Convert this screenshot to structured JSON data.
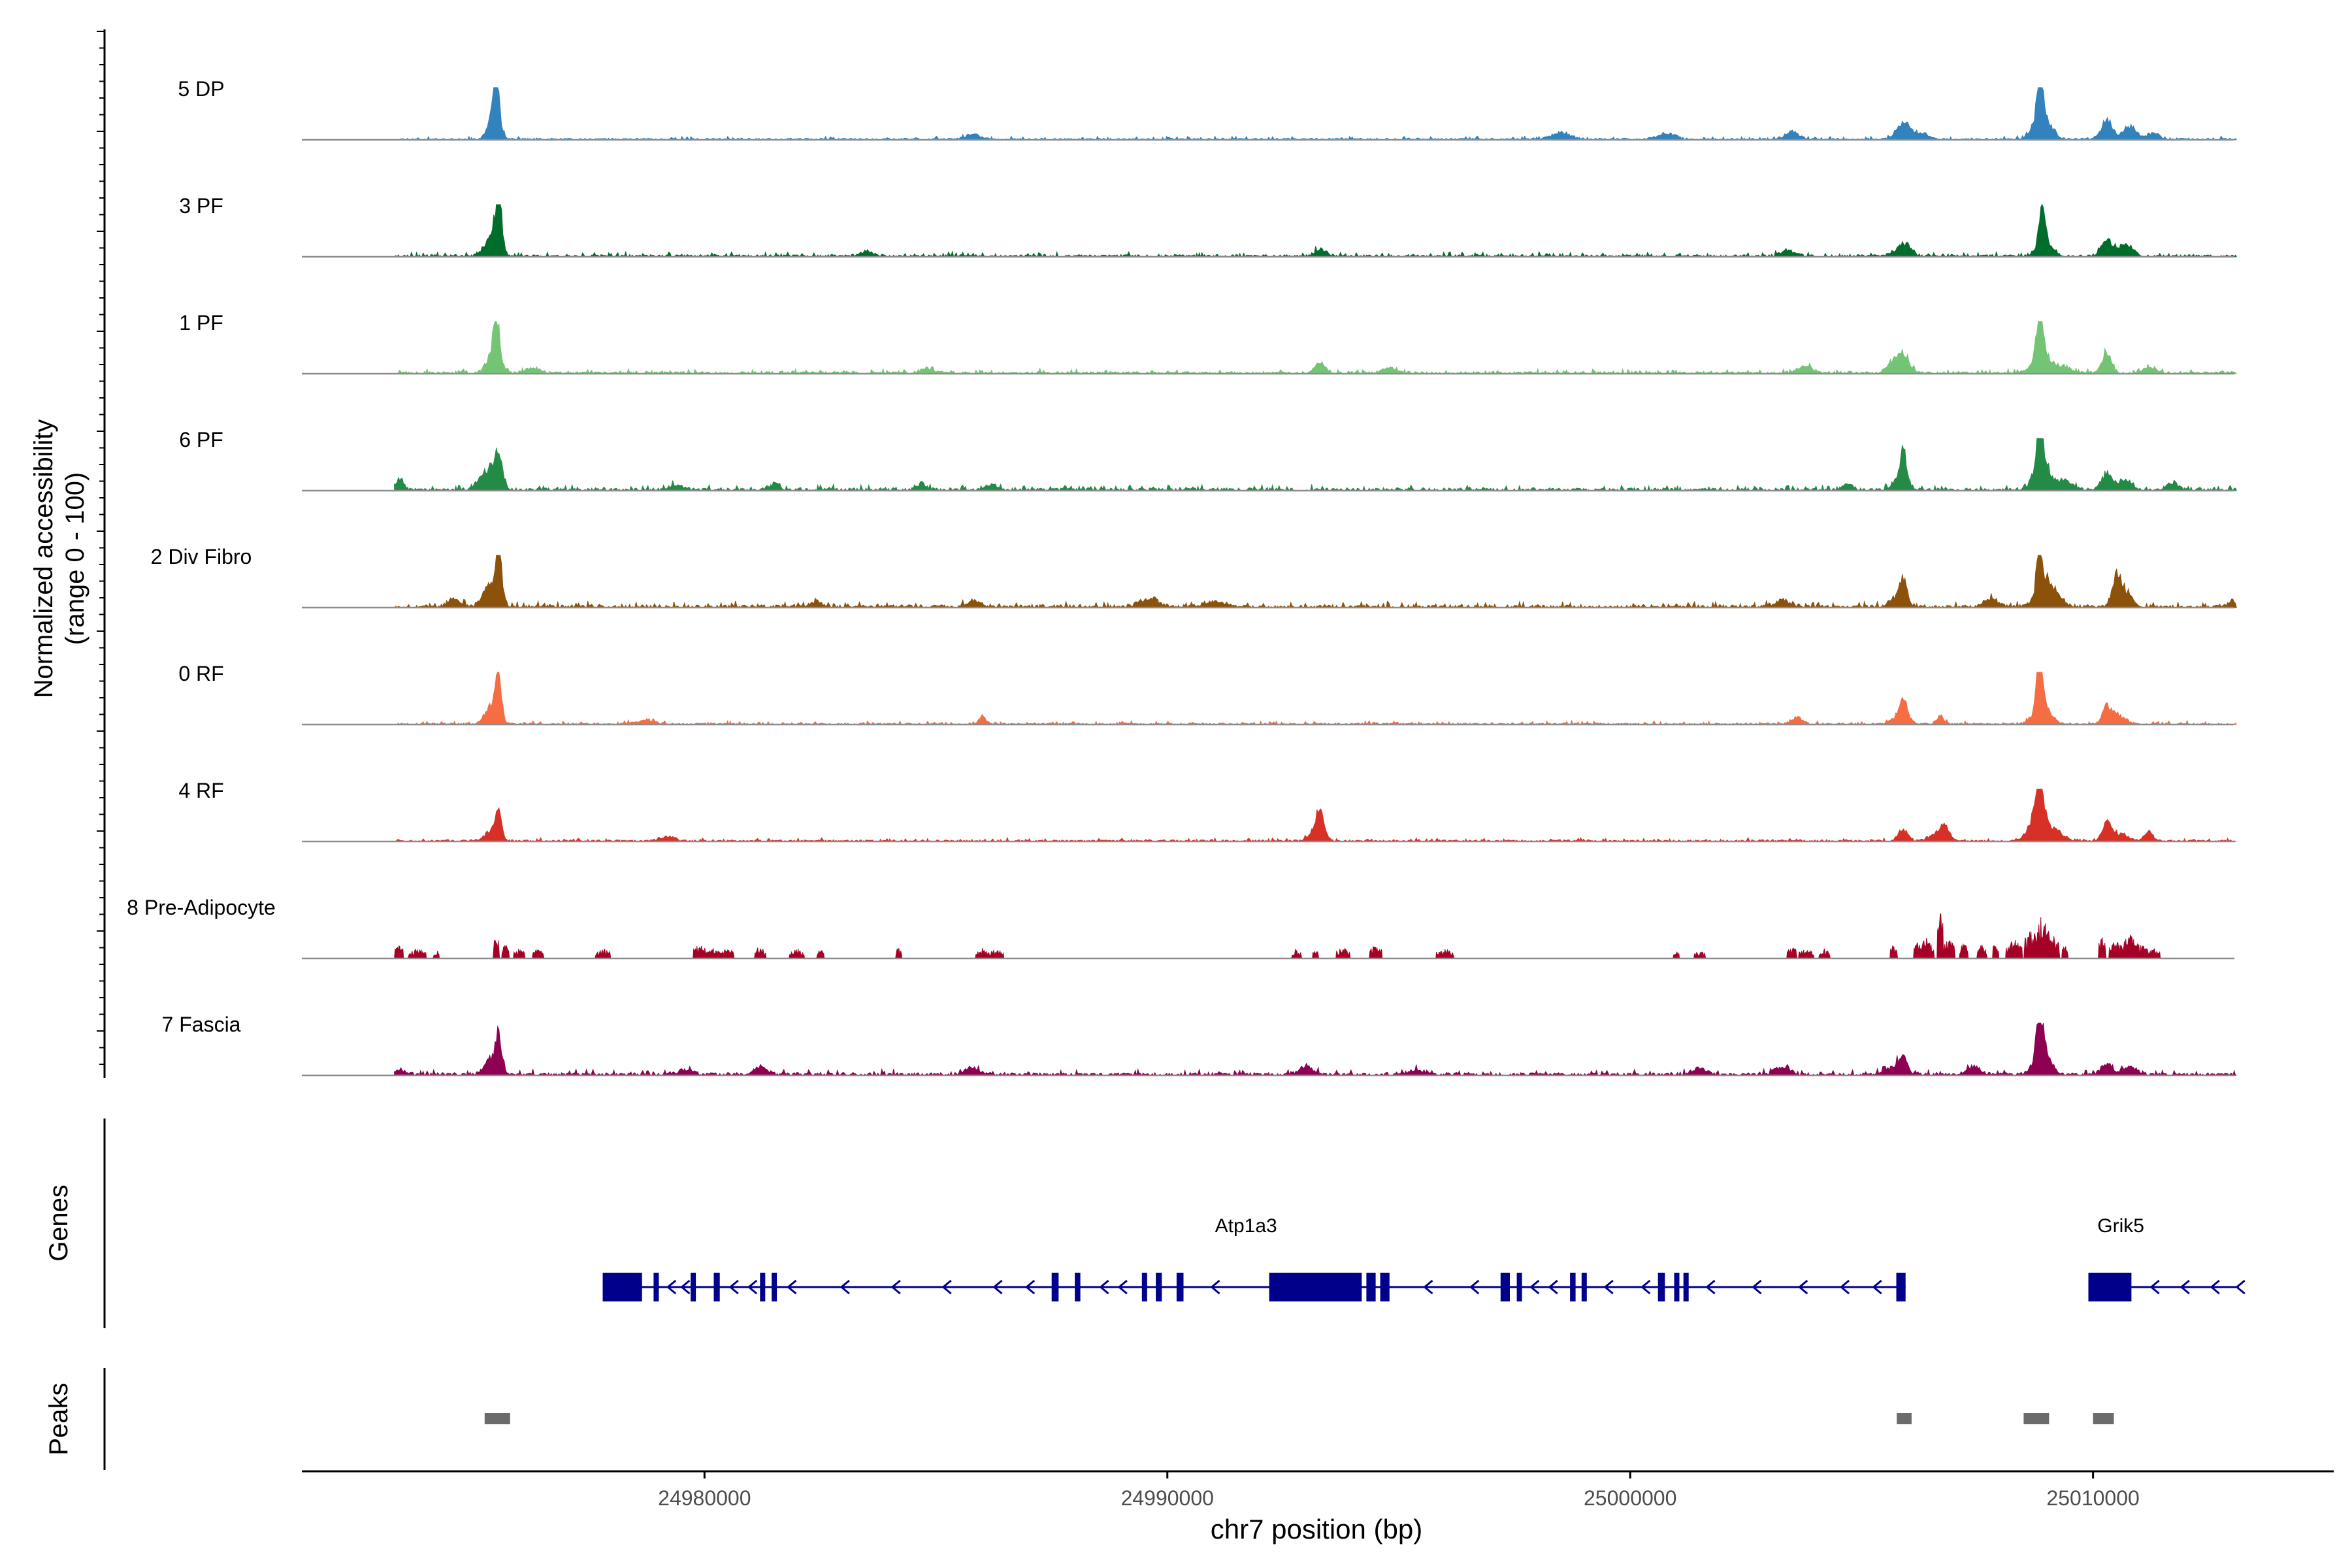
{
  "chart_data": {
    "type": "area",
    "title": "",
    "xlabel": "chr7 position (bp)",
    "ylabel_line1": "Normalized accessibility",
    "ylabel_line2": "(range 0 - 100)",
    "xlim": [
      24971300,
      25015200
    ],
    "ylim": [
      0,
      100
    ],
    "x_ticks": [
      24980000,
      24990000,
      25000000,
      25010000
    ],
    "x_tick_labels": [
      "24980000",
      "24990000",
      "25000000",
      "25010000"
    ],
    "signal_start": 24973300,
    "signal_end": 25013100,
    "series": [
      {
        "name": "5 DP",
        "color": "#3182bd",
        "noise": 3,
        "mode": "smooth",
        "seed": 11,
        "peaks": [
          [
            24975500,
            95,
            60
          ],
          [
            24975450,
            45,
            120
          ],
          [
            24985800,
            10,
            150
          ],
          [
            24998500,
            12,
            200
          ],
          [
            25000800,
            10,
            180
          ],
          [
            25003500,
            14,
            150
          ],
          [
            25005900,
            30,
            150
          ],
          [
            25006300,
            12,
            150
          ],
          [
            25008850,
            100,
            60
          ],
          [
            25008900,
            45,
            180
          ],
          [
            25010300,
            35,
            120
          ],
          [
            25010800,
            25,
            140
          ],
          [
            25011300,
            12,
            120
          ]
        ]
      },
      {
        "name": "3 PF",
        "color": "#006d2c",
        "noise": 4,
        "mode": "smooth",
        "seed": 23,
        "peaks": [
          [
            24975550,
            90,
            70
          ],
          [
            24975400,
            40,
            140
          ],
          [
            24983500,
            8,
            150
          ],
          [
            24993300,
            12,
            120
          ],
          [
            25003400,
            10,
            150
          ],
          [
            25005800,
            14,
            130
          ],
          [
            25006000,
            18,
            100
          ],
          [
            25008900,
            80,
            60
          ],
          [
            25008950,
            30,
            160
          ],
          [
            25010300,
            30,
            120
          ],
          [
            25010700,
            22,
            150
          ]
        ]
      },
      {
        "name": "1 PF",
        "color": "#74c476",
        "noise": 4,
        "mode": "smooth",
        "seed": 37,
        "peaks": [
          [
            24975500,
            82,
            60
          ],
          [
            24975450,
            35,
            150
          ],
          [
            24976300,
            10,
            150
          ],
          [
            24984800,
            8,
            150
          ],
          [
            24993300,
            20,
            90
          ],
          [
            24994800,
            10,
            150
          ],
          [
            25003800,
            14,
            150
          ],
          [
            25005700,
            18,
            150
          ],
          [
            25005900,
            28,
            140
          ],
          [
            25008850,
            100,
            60
          ],
          [
            25008900,
            40,
            180
          ],
          [
            25009400,
            12,
            150
          ],
          [
            25010300,
            40,
            100
          ],
          [
            25011200,
            10,
            150
          ]
        ]
      },
      {
        "name": "6 PF",
        "color": "#238b45",
        "noise": 5,
        "mode": "smooth",
        "seed": 41,
        "peaks": [
          [
            24973400,
            18,
            100
          ],
          [
            24975550,
            52,
            80
          ],
          [
            24975400,
            32,
            160
          ],
          [
            24975200,
            15,
            150
          ],
          [
            24979400,
            10,
            120
          ],
          [
            24981500,
            10,
            120
          ],
          [
            24984700,
            12,
            100
          ],
          [
            24986200,
            10,
            100
          ],
          [
            25004700,
            12,
            100
          ],
          [
            25005900,
            58,
            60
          ],
          [
            25005850,
            25,
            150
          ],
          [
            25008850,
            100,
            60
          ],
          [
            25008900,
            45,
            180
          ],
          [
            25009400,
            18,
            150
          ],
          [
            25010300,
            32,
            110
          ],
          [
            25010700,
            18,
            150
          ],
          [
            25011700,
            14,
            120
          ]
        ]
      },
      {
        "name": "2 Div Fibro",
        "color": "#8c510a",
        "noise": 5,
        "mode": "smooth",
        "seed": 53,
        "peaks": [
          [
            24975550,
            96,
            60
          ],
          [
            24975400,
            45,
            150
          ],
          [
            24974600,
            12,
            150
          ],
          [
            24982400,
            8,
            150
          ],
          [
            24985800,
            10,
            150
          ],
          [
            24989600,
            14,
            200
          ],
          [
            24991000,
            10,
            200
          ],
          [
            25003300,
            12,
            150
          ],
          [
            25005900,
            42,
            70
          ],
          [
            25005800,
            20,
            160
          ],
          [
            25007800,
            14,
            150
          ],
          [
            25008850,
            100,
            60
          ],
          [
            25008950,
            40,
            180
          ],
          [
            25009200,
            15,
            150
          ],
          [
            25010500,
            52,
            90
          ],
          [
            25010700,
            28,
            140
          ],
          [
            25013000,
            12,
            80
          ]
        ]
      },
      {
        "name": "0 RF",
        "color": "#f46d43",
        "noise": 3,
        "mode": "smooth",
        "seed": 67,
        "peaks": [
          [
            24975550,
            80,
            60
          ],
          [
            24975400,
            35,
            140
          ],
          [
            24978700,
            6,
            200
          ],
          [
            24986000,
            12,
            80
          ],
          [
            25003600,
            12,
            120
          ],
          [
            25005900,
            30,
            80
          ],
          [
            25005850,
            18,
            150
          ],
          [
            25006700,
            14,
            80
          ],
          [
            25008850,
            100,
            60
          ],
          [
            25008900,
            40,
            170
          ],
          [
            25010300,
            32,
            100
          ],
          [
            25010550,
            15,
            150
          ]
        ]
      },
      {
        "name": "4 RF",
        "color": "#d73027",
        "noise": 3,
        "mode": "smooth",
        "seed": 71,
        "peaks": [
          [
            24975550,
            55,
            60
          ],
          [
            24975400,
            20,
            140
          ],
          [
            24979200,
            8,
            150
          ],
          [
            24993300,
            45,
            80
          ],
          [
            24993200,
            20,
            140
          ],
          [
            25005900,
            22,
            100
          ],
          [
            25006800,
            30,
            90
          ],
          [
            25006600,
            14,
            150
          ],
          [
            25008850,
            85,
            70
          ],
          [
            25008800,
            55,
            170
          ],
          [
            25009200,
            20,
            150
          ],
          [
            25010300,
            38,
            90
          ],
          [
            25010600,
            14,
            150
          ],
          [
            25011200,
            18,
            90
          ]
        ]
      },
      {
        "name": "8 Pre-Adipocyte",
        "color": "#a50026",
        "noise": 0,
        "mode": "spiky",
        "seed": 83,
        "end": 25011700,
        "spikes": [
          [
            24973400,
            30
          ],
          [
            24973800,
            20
          ],
          [
            24974200,
            18
          ],
          [
            24975500,
            50
          ],
          [
            24975700,
            30
          ],
          [
            24976000,
            20
          ],
          [
            24976400,
            20
          ],
          [
            24977800,
            20
          ],
          [
            24979900,
            30
          ],
          [
            24980200,
            20
          ],
          [
            24980500,
            25
          ],
          [
            24981200,
            25
          ],
          [
            24982000,
            20
          ],
          [
            24982500,
            20
          ],
          [
            24984200,
            25
          ],
          [
            24986000,
            20
          ],
          [
            24986300,
            18
          ],
          [
            24992800,
            20
          ],
          [
            24993200,
            18
          ],
          [
            24993800,
            22
          ],
          [
            24994500,
            28
          ],
          [
            24996000,
            20
          ],
          [
            25001000,
            15
          ],
          [
            25001500,
            15
          ],
          [
            25003500,
            25
          ],
          [
            25003800,
            20
          ],
          [
            25004200,
            18
          ],
          [
            25005700,
            30
          ],
          [
            25006200,
            35
          ],
          [
            25006400,
            45
          ],
          [
            25006700,
            100
          ],
          [
            25006900,
            40
          ],
          [
            25007200,
            30
          ],
          [
            25007600,
            28
          ],
          [
            25007900,
            35
          ],
          [
            25008300,
            40
          ],
          [
            25008700,
            60
          ],
          [
            25008900,
            85
          ],
          [
            25009100,
            50
          ],
          [
            25009400,
            30
          ],
          [
            25010200,
            45
          ],
          [
            25010500,
            35
          ],
          [
            25010800,
            50
          ],
          [
            25011000,
            30
          ],
          [
            25011300,
            20
          ]
        ]
      },
      {
        "name": "7 Fascia",
        "color": "#8e0152",
        "noise": 5,
        "mode": "smooth",
        "seed": 97,
        "peaks": [
          [
            24973400,
            10,
            150
          ],
          [
            24975550,
            62,
            70
          ],
          [
            24975400,
            28,
            150
          ],
          [
            24979600,
            10,
            150
          ],
          [
            24981200,
            14,
            150
          ],
          [
            24985800,
            12,
            150
          ],
          [
            24993000,
            14,
            150
          ],
          [
            24995400,
            10,
            150
          ],
          [
            25001500,
            12,
            150
          ],
          [
            25003300,
            16,
            150
          ],
          [
            25005900,
            28,
            90
          ],
          [
            25005700,
            14,
            180
          ],
          [
            25007400,
            14,
            150
          ],
          [
            25008850,
            85,
            70
          ],
          [
            25008900,
            45,
            170
          ],
          [
            25010300,
            22,
            110
          ],
          [
            25010800,
            15,
            150
          ]
        ]
      }
    ],
    "genes_track": {
      "label": "Genes",
      "color": "#00008b",
      "genes": [
        {
          "name": "Atp1a3",
          "start": 24977800,
          "end": 25005950,
          "strand": "-",
          "label_at": 24991700,
          "exons": [
            [
              24977800,
              24978650
            ],
            [
              24978900,
              24979000
            ],
            [
              24979700,
              24979800
            ],
            [
              24980200,
              24980330
            ],
            [
              24981200,
              24981290
            ],
            [
              24981450,
              24981560
            ],
            [
              24987500,
              24987650
            ],
            [
              24988000,
              24988120
            ],
            [
              24989450,
              24989550
            ],
            [
              24989750,
              24989880
            ],
            [
              24990200,
              24990350
            ],
            [
              24992200,
              24994200
            ],
            [
              24994300,
              24994500
            ],
            [
              24994600,
              24994800
            ],
            [
              24997200,
              24997400
            ],
            [
              24997550,
              24997650
            ],
            [
              24998700,
              24998820
            ],
            [
              24998950,
              24999050
            ],
            [
              25000600,
              25000750
            ],
            [
              25000950,
              25001050
            ],
            [
              25001150,
              25001250
            ],
            [
              25005750,
              25005950
            ]
          ],
          "arrows": [
            24979250,
            24979550,
            24980600,
            24981000,
            24981850,
            24983000,
            24984100,
            24985200,
            24986300,
            24987000,
            24988600,
            24989000,
            24991000,
            24995600,
            24996600,
            24997900,
            24998300,
            24999500,
            25000300,
            25001700,
            25002700,
            25003700,
            25004600,
            25005300
          ]
        },
        {
          "name": "Grik5",
          "start": 25009900,
          "end": 25013150,
          "strand": "-",
          "label_at": 25010600,
          "exons": [
            [
              25009900,
              25010830
            ]
          ],
          "arrows": [
            25011300,
            25011950,
            25012600,
            25013150
          ]
        }
      ]
    },
    "peaks_track": {
      "label": "Peaks",
      "color": "#6b6b6b",
      "regions": [
        [
          24975250,
          24975800
        ],
        [
          25005760,
          25006080
        ],
        [
          25008500,
          25009050
        ],
        [
          25010000,
          25010450
        ]
      ]
    }
  }
}
